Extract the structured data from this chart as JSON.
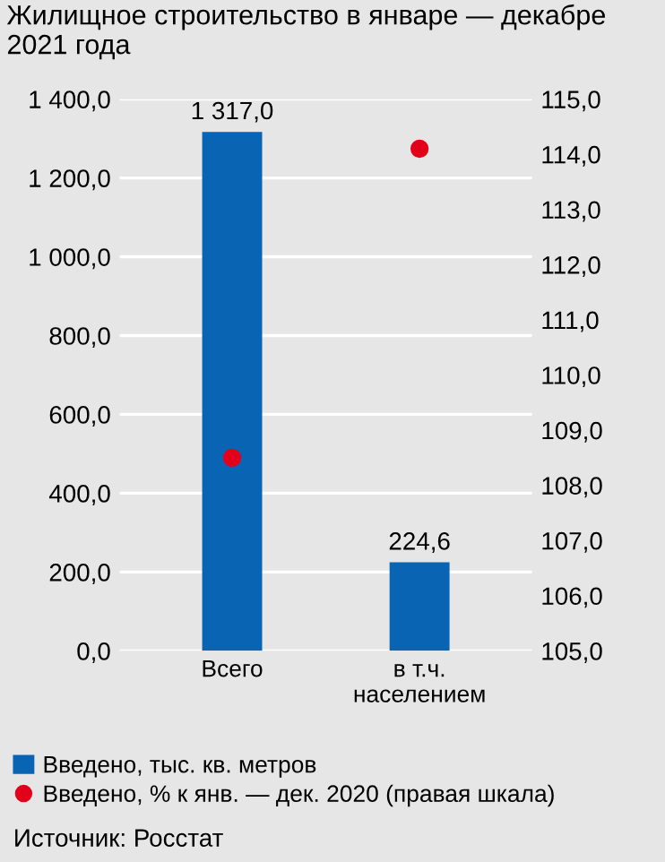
{
  "chart_data": {
    "type": "bar",
    "title": "Жилищное строительство в январе — декабре 2021 года",
    "categories": [
      "Всего",
      "в т.ч.\nнаселением"
    ],
    "series": [
      {
        "name": "Введено, тыс. кв. метров",
        "color": "#0a64b4",
        "values": [
          1317.0,
          224.6
        ],
        "value_labels": [
          "1 317,0",
          "224,6"
        ]
      },
      {
        "name": "Введено, % к янв. — дек. 2020 (правая шкала)",
        "type": "scatter",
        "axis": "y2",
        "color": "#e2001a",
        "values": [
          108.5,
          114.1
        ]
      }
    ],
    "ylim": [
      0,
      1400
    ],
    "yticks": [
      {
        "value": 0,
        "label": "0,0"
      },
      {
        "value": 200,
        "label": "200,0"
      },
      {
        "value": 400,
        "label": "400,0"
      },
      {
        "value": 600,
        "label": "600,0"
      },
      {
        "value": 800,
        "label": "800,0"
      },
      {
        "value": 1000,
        "label": "1 000,0"
      },
      {
        "value": 1200,
        "label": "1 200,0"
      },
      {
        "value": 1400,
        "label": "1 400,0"
      }
    ],
    "y2lim": [
      105,
      115
    ],
    "y2ticks": [
      {
        "value": 105,
        "label": "105,0"
      },
      {
        "value": 106,
        "label": "106,0"
      },
      {
        "value": 107,
        "label": "107,0"
      },
      {
        "value": 108,
        "label": "108,0"
      },
      {
        "value": 109,
        "label": "109,0"
      },
      {
        "value": 110,
        "label": "110,0"
      },
      {
        "value": 111,
        "label": "111,0"
      },
      {
        "value": 112,
        "label": "112,0"
      },
      {
        "value": 113,
        "label": "113,0"
      },
      {
        "value": 114,
        "label": "114,0"
      },
      {
        "value": 115,
        "label": "115,0"
      }
    ],
    "grid": "y",
    "legend": "bottom",
    "marker": "circle",
    "annotations": [
      "Источник: Росстат"
    ]
  }
}
